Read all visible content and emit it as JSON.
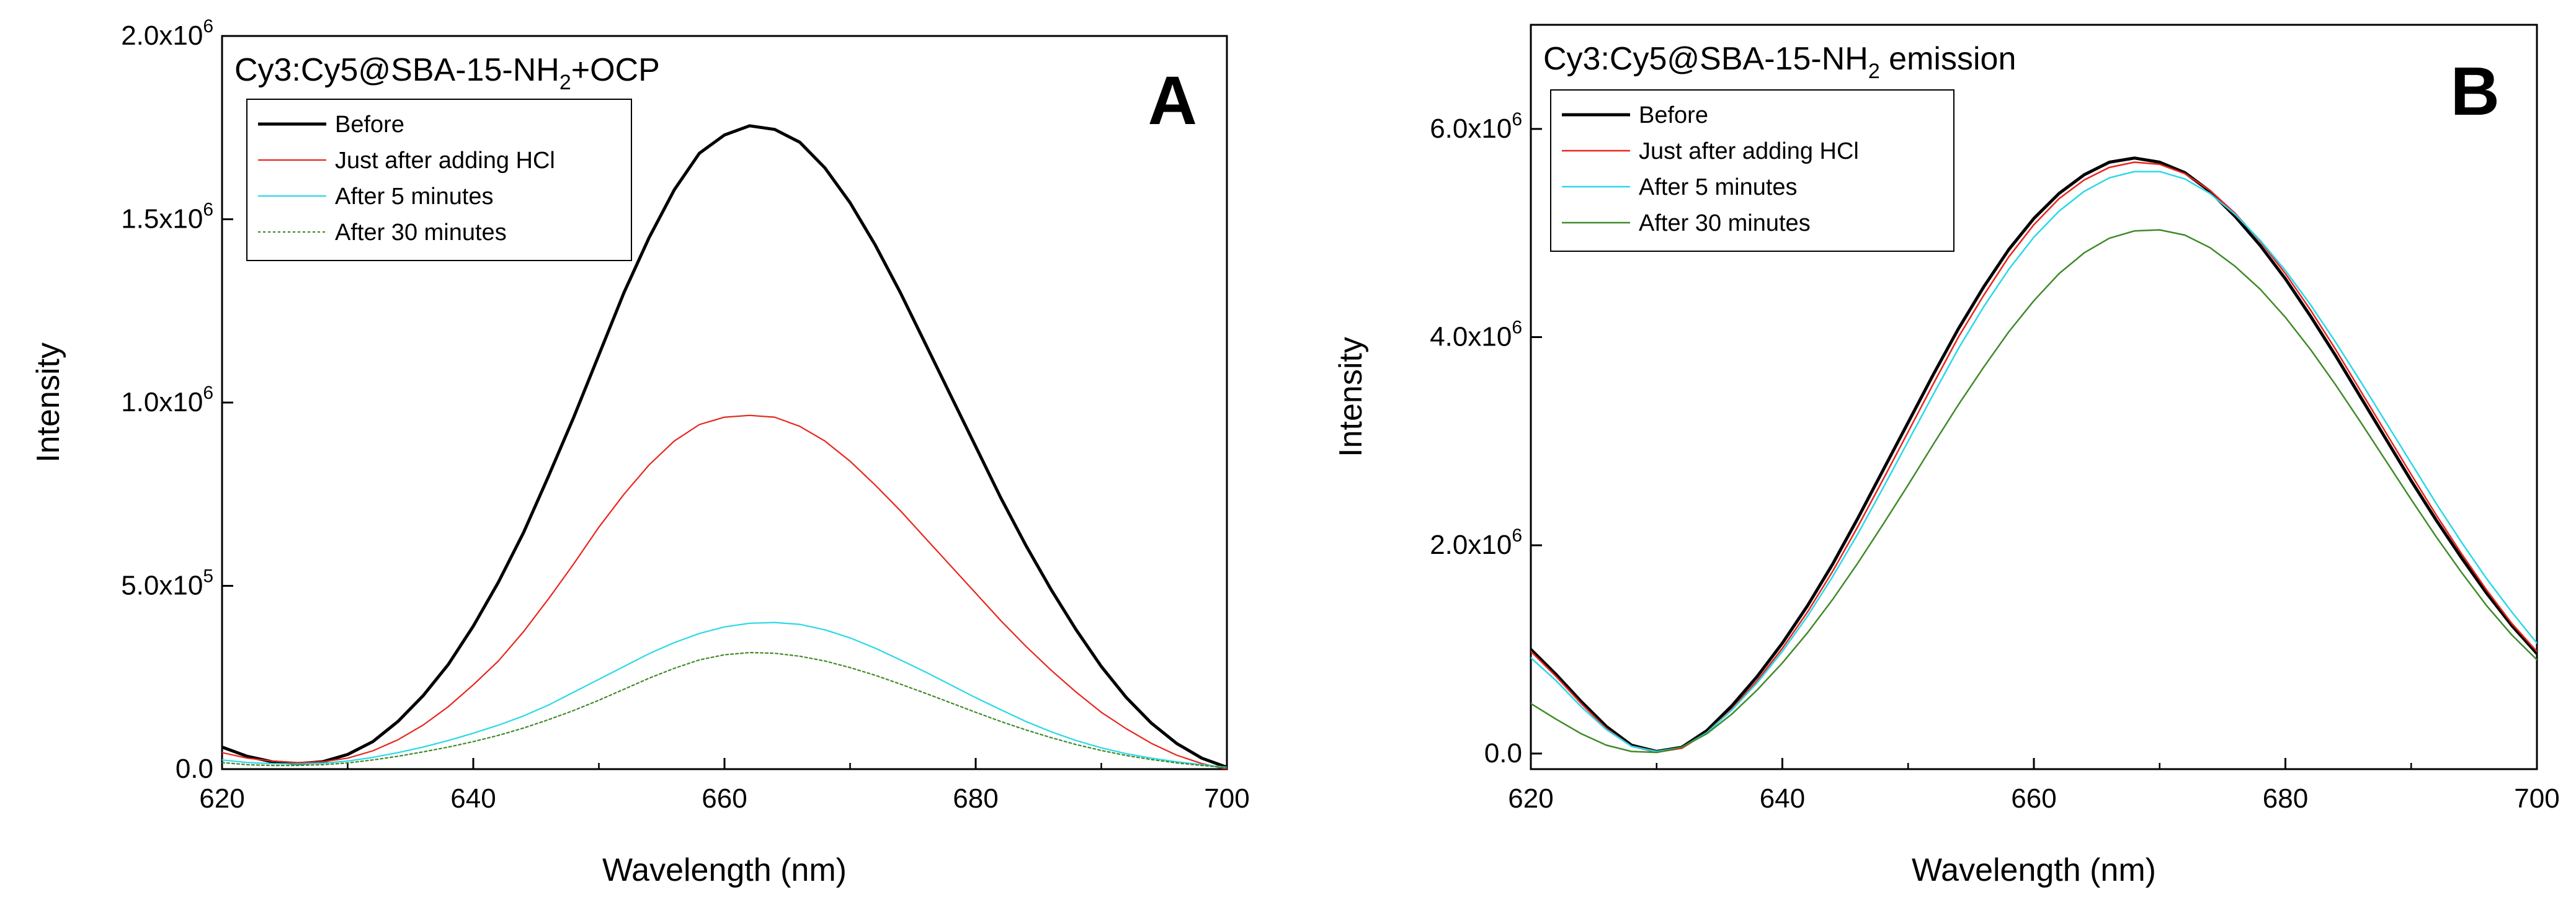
{
  "chart_data": [
    {
      "type": "line",
      "panel_letter": "A",
      "title": "Cy3:Cy5@SBA-15-NH",
      "title_sub": "2",
      "title_suffix": "+OCP",
      "xlabel": "Wavelength (nm)",
      "ylabel": "Intensity",
      "xlim": [
        620,
        700
      ],
      "ylim": [
        0,
        2000000
      ],
      "x_ticks": [
        620,
        640,
        660,
        680,
        700
      ],
      "y_ticks": [
        {
          "value": 0,
          "mant": "0.0",
          "exp": ""
        },
        {
          "value": 500000,
          "mant": "5.0x10",
          "exp": "5"
        },
        {
          "value": 1000000,
          "mant": "1.0x10",
          "exp": "6"
        },
        {
          "value": 1500000,
          "mant": "1.5x10",
          "exp": "6"
        },
        {
          "value": 2000000,
          "mant": "2.0x10",
          "exp": "6"
        }
      ],
      "legend_position": "top-left",
      "series": [
        {
          "name": "Before",
          "color": "#000000",
          "width": 5,
          "dash": "",
          "x": [
            620,
            622,
            624,
            626,
            628,
            630,
            632,
            634,
            636,
            638,
            640,
            642,
            644,
            646,
            648,
            650,
            652,
            654,
            656,
            658,
            660,
            662,
            664,
            666,
            668,
            670,
            672,
            674,
            676,
            678,
            680,
            682,
            684,
            686,
            688,
            690,
            692,
            694,
            696,
            698,
            700
          ],
          "y": [
            60000,
            35000,
            20000,
            15000,
            20000,
            40000,
            75000,
            130000,
            200000,
            285000,
            390000,
            510000,
            645000,
            800000,
            960000,
            1130000,
            1300000,
            1450000,
            1580000,
            1680000,
            1730000,
            1755000,
            1745000,
            1710000,
            1640000,
            1545000,
            1430000,
            1300000,
            1160000,
            1020000,
            880000,
            740000,
            610000,
            490000,
            380000,
            280000,
            195000,
            125000,
            70000,
            30000,
            5000
          ]
        },
        {
          "name": "Just after adding HCl",
          "color": "#e8251e",
          "width": 2.2,
          "dash": "",
          "x": [
            620,
            622,
            624,
            626,
            628,
            630,
            632,
            634,
            636,
            638,
            640,
            642,
            644,
            646,
            648,
            650,
            652,
            654,
            656,
            658,
            660,
            662,
            664,
            666,
            668,
            670,
            672,
            674,
            676,
            678,
            680,
            682,
            684,
            686,
            688,
            690,
            692,
            694,
            696,
            698,
            700
          ],
          "y": [
            45000,
            30000,
            22000,
            18000,
            20000,
            30000,
            50000,
            80000,
            120000,
            170000,
            230000,
            295000,
            375000,
            465000,
            560000,
            660000,
            750000,
            830000,
            895000,
            940000,
            960000,
            965000,
            960000,
            935000,
            895000,
            840000,
            775000,
            705000,
            630000,
            555000,
            480000,
            405000,
            335000,
            270000,
            210000,
            155000,
            110000,
            70000,
            38000,
            15000,
            0
          ]
        },
        {
          "name": "After 5 minutes",
          "color": "#2ad8e8",
          "width": 2.2,
          "dash": "",
          "x": [
            620,
            622,
            624,
            626,
            628,
            630,
            632,
            634,
            636,
            638,
            640,
            642,
            644,
            646,
            648,
            650,
            652,
            654,
            656,
            658,
            660,
            662,
            664,
            666,
            668,
            670,
            672,
            674,
            676,
            678,
            680,
            682,
            684,
            686,
            688,
            690,
            692,
            694,
            696,
            698,
            700
          ],
          "y": [
            25000,
            18000,
            15000,
            14000,
            16000,
            22000,
            32000,
            45000,
            60000,
            78000,
            98000,
            120000,
            145000,
            175000,
            210000,
            245000,
            280000,
            315000,
            345000,
            370000,
            388000,
            398000,
            400000,
            395000,
            380000,
            358000,
            330000,
            298000,
            265000,
            230000,
            195000,
            162000,
            130000,
            102000,
            78000,
            58000,
            42000,
            30000,
            20000,
            12000,
            5000
          ]
        },
        {
          "name": "After 30 minutes",
          "color": "#3f8a2a",
          "width": 2.2,
          "dash": "4 4",
          "x": [
            620,
            622,
            624,
            626,
            628,
            630,
            632,
            634,
            636,
            638,
            640,
            642,
            644,
            646,
            648,
            650,
            652,
            654,
            656,
            658,
            660,
            662,
            664,
            666,
            668,
            670,
            672,
            674,
            676,
            678,
            680,
            682,
            684,
            686,
            688,
            690,
            692,
            694,
            696,
            698,
            700
          ],
          "y": [
            18000,
            12000,
            10000,
            10000,
            12000,
            17000,
            25000,
            35000,
            47000,
            60000,
            75000,
            92000,
            112000,
            135000,
            160000,
            188000,
            218000,
            248000,
            275000,
            298000,
            312000,
            318000,
            316000,
            308000,
            295000,
            277000,
            256000,
            232000,
            207000,
            181000,
            155000,
            130000,
            107000,
            86000,
            67000,
            51000,
            37000,
            26000,
            17000,
            10000,
            4000
          ]
        }
      ]
    },
    {
      "type": "line",
      "panel_letter": "B",
      "title": "Cy3:Cy5@SBA-15-NH",
      "title_sub": "2",
      "title_suffix": " emission",
      "xlabel": "Wavelength (nm)",
      "ylabel": "Intensity",
      "xlim": [
        620,
        700
      ],
      "ylim": [
        -150000,
        7000000
      ],
      "x_ticks": [
        620,
        640,
        660,
        680,
        700
      ],
      "y_ticks": [
        {
          "value": 0,
          "mant": "0.0",
          "exp": ""
        },
        {
          "value": 2000000,
          "mant": "2.0x10",
          "exp": "6"
        },
        {
          "value": 4000000,
          "mant": "4.0x10",
          "exp": "6"
        },
        {
          "value": 6000000,
          "mant": "6.0x10",
          "exp": "6"
        }
      ],
      "legend_position": "top-left",
      "series": [
        {
          "name": "Before",
          "color": "#000000",
          "width": 5,
          "dash": "",
          "x": [
            620,
            622,
            624,
            626,
            628,
            630,
            632,
            634,
            636,
            638,
            640,
            642,
            644,
            646,
            648,
            650,
            652,
            654,
            656,
            658,
            660,
            662,
            664,
            666,
            668,
            670,
            672,
            674,
            676,
            678,
            680,
            682,
            684,
            686,
            688,
            690,
            692,
            694,
            696,
            698,
            700
          ],
          "y": [
            1000000,
            760000,
            500000,
            260000,
            80000,
            20000,
            60000,
            220000,
            460000,
            740000,
            1060000,
            1420000,
            1820000,
            2260000,
            2720000,
            3180000,
            3640000,
            4080000,
            4480000,
            4840000,
            5140000,
            5380000,
            5560000,
            5680000,
            5720000,
            5680000,
            5580000,
            5400000,
            5160000,
            4880000,
            4560000,
            4200000,
            3820000,
            3420000,
            3020000,
            2620000,
            2240000,
            1880000,
            1540000,
            1230000,
            960000
          ]
        },
        {
          "name": "Just after adding HCl",
          "color": "#e8251e",
          "width": 2.5,
          "dash": "",
          "x": [
            620,
            622,
            624,
            626,
            628,
            630,
            632,
            634,
            636,
            638,
            640,
            642,
            644,
            646,
            648,
            650,
            652,
            654,
            656,
            658,
            660,
            662,
            664,
            666,
            668,
            670,
            672,
            674,
            676,
            678,
            680,
            682,
            684,
            686,
            688,
            690,
            692,
            694,
            696,
            698,
            700
          ],
          "y": [
            980000,
            740000,
            480000,
            240000,
            70000,
            15000,
            50000,
            200000,
            430000,
            700000,
            1010000,
            1360000,
            1750000,
            2180000,
            2630000,
            3090000,
            3550000,
            4000000,
            4400000,
            4770000,
            5080000,
            5330000,
            5510000,
            5630000,
            5680000,
            5660000,
            5570000,
            5410000,
            5190000,
            4920000,
            4610000,
            4260000,
            3880000,
            3480000,
            3080000,
            2680000,
            2290000,
            1920000,
            1570000,
            1250000,
            980000
          ]
        },
        {
          "name": "After 5 minutes",
          "color": "#2ad8e8",
          "width": 2.5,
          "dash": "",
          "x": [
            620,
            622,
            624,
            626,
            628,
            630,
            632,
            634,
            636,
            638,
            640,
            642,
            644,
            646,
            648,
            650,
            652,
            654,
            656,
            658,
            660,
            662,
            664,
            666,
            668,
            670,
            672,
            674,
            676,
            678,
            680,
            682,
            684,
            686,
            688,
            690,
            692,
            694,
            696,
            698,
            700
          ],
          "y": [
            920000,
            700000,
            450000,
            230000,
            70000,
            20000,
            60000,
            200000,
            420000,
            680000,
            980000,
            1320000,
            1700000,
            2110000,
            2550000,
            3000000,
            3450000,
            3890000,
            4290000,
            4650000,
            4960000,
            5210000,
            5400000,
            5530000,
            5590000,
            5590000,
            5520000,
            5380000,
            5180000,
            4930000,
            4640000,
            4310000,
            3950000,
            3570000,
            3180000,
            2790000,
            2400000,
            2030000,
            1680000,
            1360000,
            1060000
          ]
        },
        {
          "name": "After 30 minutes",
          "color": "#3f8a2a",
          "width": 2.5,
          "dash": "",
          "x": [
            620,
            622,
            624,
            626,
            628,
            630,
            632,
            634,
            636,
            638,
            640,
            642,
            644,
            646,
            648,
            650,
            652,
            654,
            656,
            658,
            660,
            662,
            664,
            666,
            668,
            670,
            672,
            674,
            676,
            678,
            680,
            682,
            684,
            686,
            688,
            690,
            692,
            694,
            696,
            698,
            700
          ],
          "y": [
            480000,
            330000,
            190000,
            80000,
            20000,
            10000,
            60000,
            190000,
            380000,
            610000,
            870000,
            1160000,
            1480000,
            1830000,
            2200000,
            2580000,
            2970000,
            3350000,
            3710000,
            4050000,
            4350000,
            4610000,
            4810000,
            4950000,
            5020000,
            5030000,
            4980000,
            4860000,
            4680000,
            4460000,
            4190000,
            3880000,
            3540000,
            3180000,
            2810000,
            2440000,
            2080000,
            1740000,
            1420000,
            1140000,
            900000
          ]
        }
      ]
    }
  ]
}
